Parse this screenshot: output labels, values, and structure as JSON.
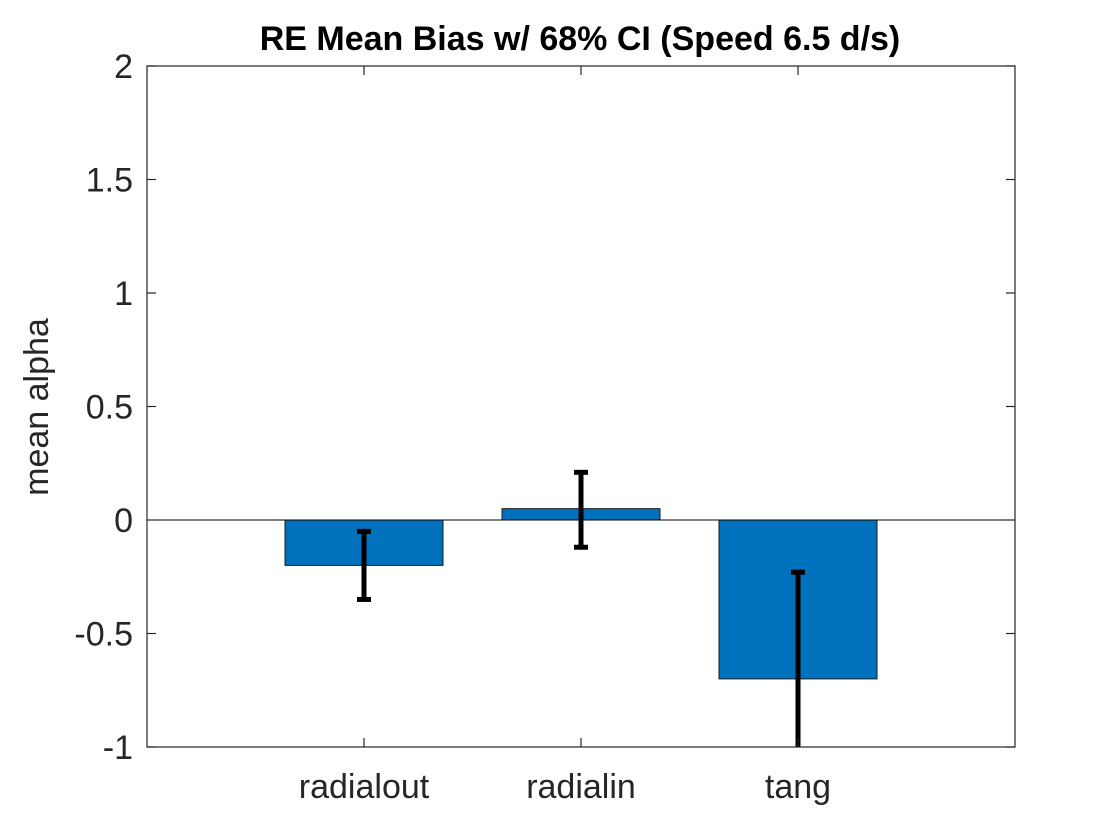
{
  "chart_data": {
    "type": "bar",
    "title": "RE Mean Bias w/ 68% CI (Speed 6.5 d/s)",
    "xlabel": "",
    "ylabel": "mean alpha",
    "categories": [
      "radialout",
      "radialin",
      "tang"
    ],
    "values": [
      -0.2,
      0.05,
      -0.7
    ],
    "error_bars": [
      {
        "low": -0.35,
        "high": -0.05
      },
      {
        "low": -0.12,
        "high": 0.21
      },
      {
        "low": -1.0,
        "high": -0.23
      }
    ],
    "ylim": [
      -1,
      2
    ],
    "yticks": [
      -1,
      -0.5,
      0,
      0.5,
      1,
      1.5,
      2
    ],
    "ytick_labels": [
      "-1",
      "-0.5",
      "0",
      "0.5",
      "1",
      "1.5",
      "2"
    ],
    "grid": false,
    "legend": "none",
    "colors": {
      "bar": "#0072BD",
      "error_bar": "#000000",
      "axis": "#262626",
      "zero_line": "#000000"
    }
  }
}
